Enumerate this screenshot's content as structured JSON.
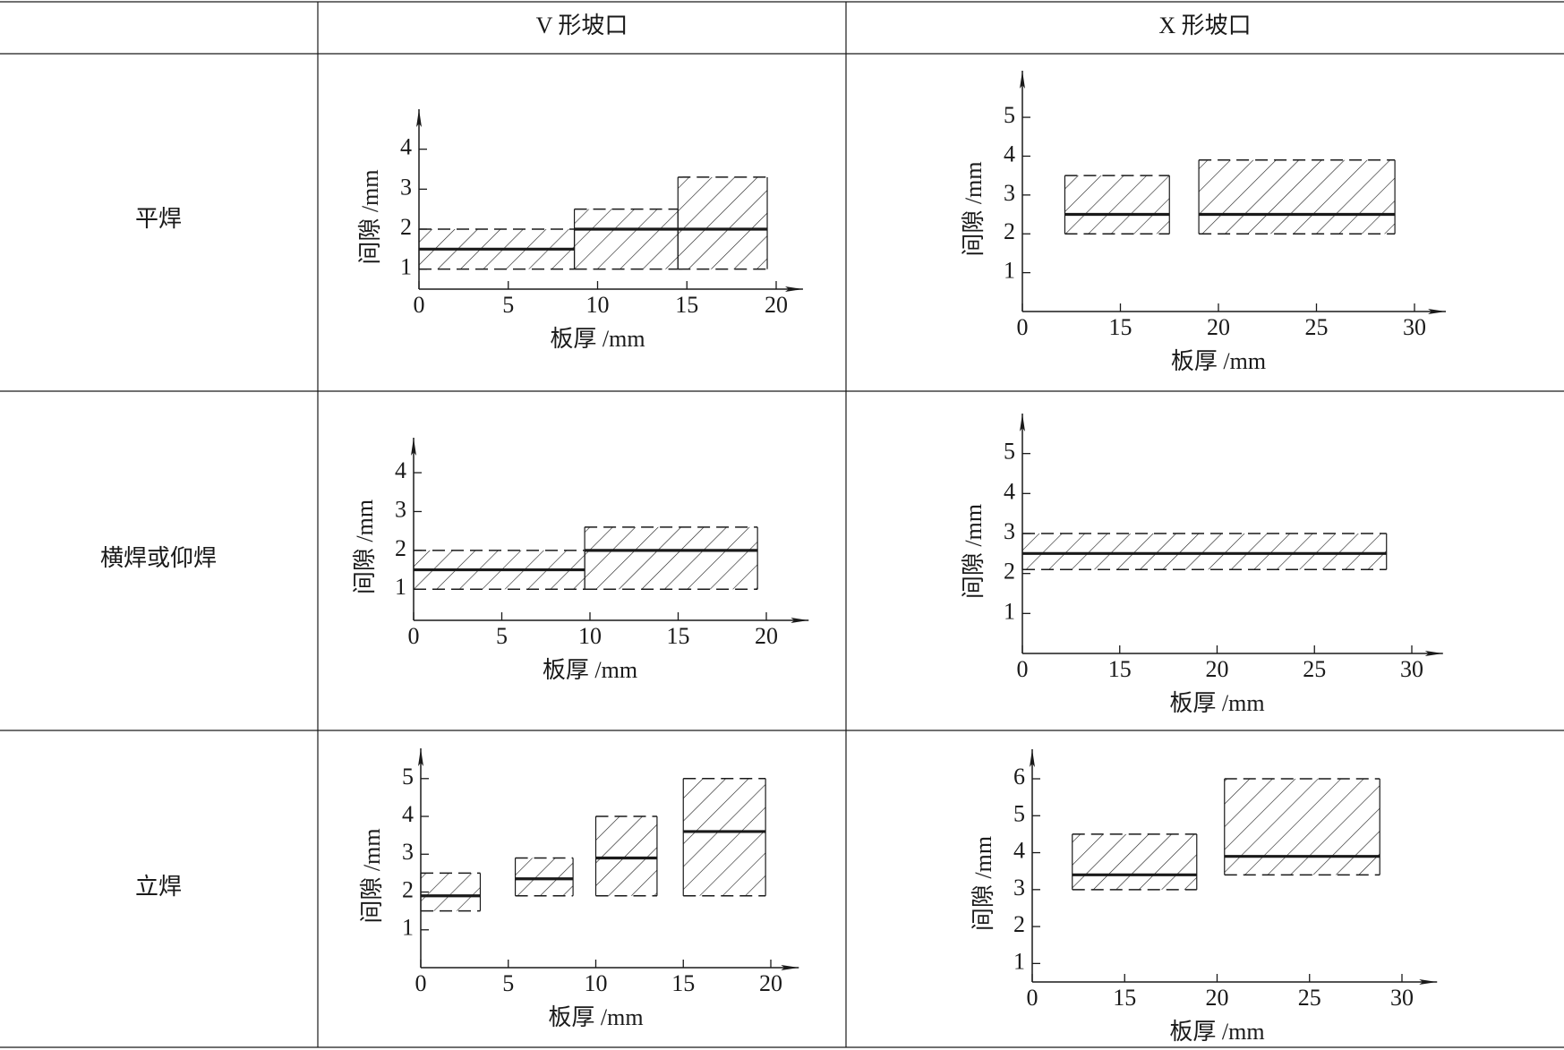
{
  "table": {
    "columns": [
      "V 形坡口",
      "X 形坡口"
    ],
    "rows": [
      "平焊",
      "横焊或仰焊",
      "立焊"
    ]
  },
  "chart_data": [
    {
      "type": "range_band",
      "color": "#1a1a1a",
      "xlabel": "板厚 /mm",
      "ylabel": "间隙 /mm",
      "xlim": [
        0,
        21.5
      ],
      "xticks": [
        0,
        5,
        10,
        15,
        20
      ],
      "ylim": [
        0.5,
        5
      ],
      "yticks": [
        1,
        2,
        3,
        4
      ],
      "x_from": [
        0,
        8.7,
        14.5
      ],
      "x_to": [
        8.7,
        14.5,
        19.5
      ],
      "gap_min": [
        1,
        1,
        1
      ],
      "gap_max": [
        2,
        2.5,
        3.3
      ],
      "gap_nominal": [
        1.5,
        2,
        2
      ]
    },
    {
      "type": "range_band",
      "color": "#1a1a1a",
      "xlabel": "板厚 /mm",
      "ylabel": "间隙 /mm",
      "xlim": [
        0,
        31.6
      ],
      "xticks": [
        0,
        15,
        20,
        25,
        30
      ],
      "ylim": [
        0,
        6.2
      ],
      "yticks": [
        1,
        2,
        3,
        4,
        5
      ],
      "x_from": [
        6.5,
        19
      ],
      "x_to": [
        17.5,
        29
      ],
      "gap_min": [
        2,
        2
      ],
      "gap_max": [
        3.5,
        3.9
      ],
      "gap_nominal": [
        2.5,
        2.5
      ]
    },
    {
      "type": "range_band",
      "color": "#1a1a1a",
      "xlabel": "板厚 /mm",
      "ylabel": "间隙 /mm",
      "xlim": [
        0,
        22.4
      ],
      "xticks": [
        0,
        5,
        10,
        15,
        20
      ],
      "ylim": [
        0.2,
        4.9
      ],
      "yticks": [
        1,
        2,
        3,
        4
      ],
      "x_from": [
        0,
        9.7
      ],
      "x_to": [
        9.7,
        19.5
      ],
      "gap_min": [
        1,
        1
      ],
      "gap_max": [
        2,
        2.6
      ],
      "gap_nominal": [
        1.5,
        2
      ]
    },
    {
      "type": "range_band",
      "color": "#1a1a1a",
      "xlabel": "板厚 /mm",
      "ylabel": "间隙 /mm",
      "xlim": [
        0,
        31.6
      ],
      "xticks": [
        0,
        15,
        20,
        25,
        30
      ],
      "ylim": [
        0,
        6
      ],
      "yticks": [
        1,
        2,
        3,
        4,
        5
      ],
      "x_from": [
        0
      ],
      "x_to": [
        28.7
      ],
      "gap_min": [
        2.1
      ],
      "gap_max": [
        3
      ],
      "gap_nominal": [
        2.5
      ]
    },
    {
      "type": "range_band",
      "color": "#1a1a1a",
      "xlabel": "板厚 /mm",
      "ylabel": "间隙 /mm",
      "xlim": [
        0,
        21.6
      ],
      "xticks": [
        0,
        5,
        10,
        15,
        20
      ],
      "ylim": [
        0,
        5.8
      ],
      "yticks": [
        1,
        2,
        3,
        4,
        5
      ],
      "x_from": [
        0,
        5.4,
        10,
        15
      ],
      "x_to": [
        3.4,
        8.7,
        13.5,
        19.7
      ],
      "gap_min": [
        1.5,
        1.9,
        1.9,
        1.9
      ],
      "gap_max": [
        2.5,
        2.9,
        4,
        5
      ],
      "gap_nominal": [
        1.9,
        2.35,
        2.9,
        3.6
      ]
    },
    {
      "type": "range_band",
      "color": "#1a1a1a",
      "xlabel": "板厚 /mm",
      "ylabel": "间隙 /mm",
      "xlim": [
        0,
        31.9
      ],
      "xticks": [
        0,
        15,
        20,
        25,
        30
      ],
      "ylim": [
        0.5,
        6.8
      ],
      "yticks": [
        1,
        2,
        3,
        4,
        5,
        6
      ],
      "x_from": [
        6.5,
        20.4
      ],
      "x_to": [
        18.9,
        28.8
      ],
      "gap_min": [
        3,
        3.4
      ],
      "gap_max": [
        4.5,
        6
      ],
      "gap_nominal": [
        3.4,
        3.9
      ]
    }
  ]
}
